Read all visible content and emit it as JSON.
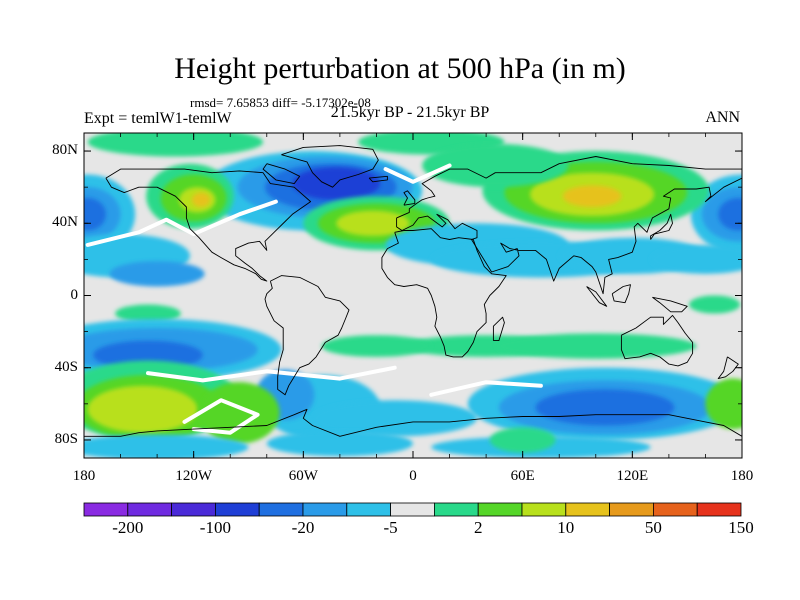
{
  "title": "Height perturbation at 500 hPa (in m)",
  "stats_line": "rmsd= 7.65853 diff= -5.17302e-08",
  "left_label": "Expt = temlW1-temlW",
  "center_label": "21.5kyr BP - 21.5kyr BP",
  "right_label": "ANN",
  "lat_ticks": [
    "80N",
    "40N",
    "0",
    "40S",
    "80S"
  ],
  "lon_ticks": [
    "180",
    "120W",
    "60W",
    "0",
    "60E",
    "120E",
    "180"
  ],
  "colorbar": {
    "labels": [
      "-200",
      "-100",
      "-20",
      "-5",
      "2",
      "10",
      "50",
      "150"
    ],
    "colors": [
      "#8a2be2",
      "#6f2ae0",
      "#4a2ad8",
      "#1f3fd6",
      "#1f6fe0",
      "#2a9be8",
      "#2ec0e8",
      "#e6e6e6",
      "#29d98a",
      "#55d628",
      "#b8e01c",
      "#e6c21c",
      "#e69a1c",
      "#e6621c",
      "#e6321c"
    ]
  },
  "map_colors": {
    "neutral": "#e6e6e6",
    "cyan": "#2ec0e8",
    "light_blue": "#2a9be8",
    "blue": "#1f6fe0",
    "dark_blue": "#1f3fd6",
    "teal": "#29d98a",
    "green": "#55d628",
    "yellow_green": "#b8e01c",
    "gold": "#e6c21c",
    "orange": "#e69a1c",
    "coastline": "#000000",
    "white": "#ffffff"
  }
}
